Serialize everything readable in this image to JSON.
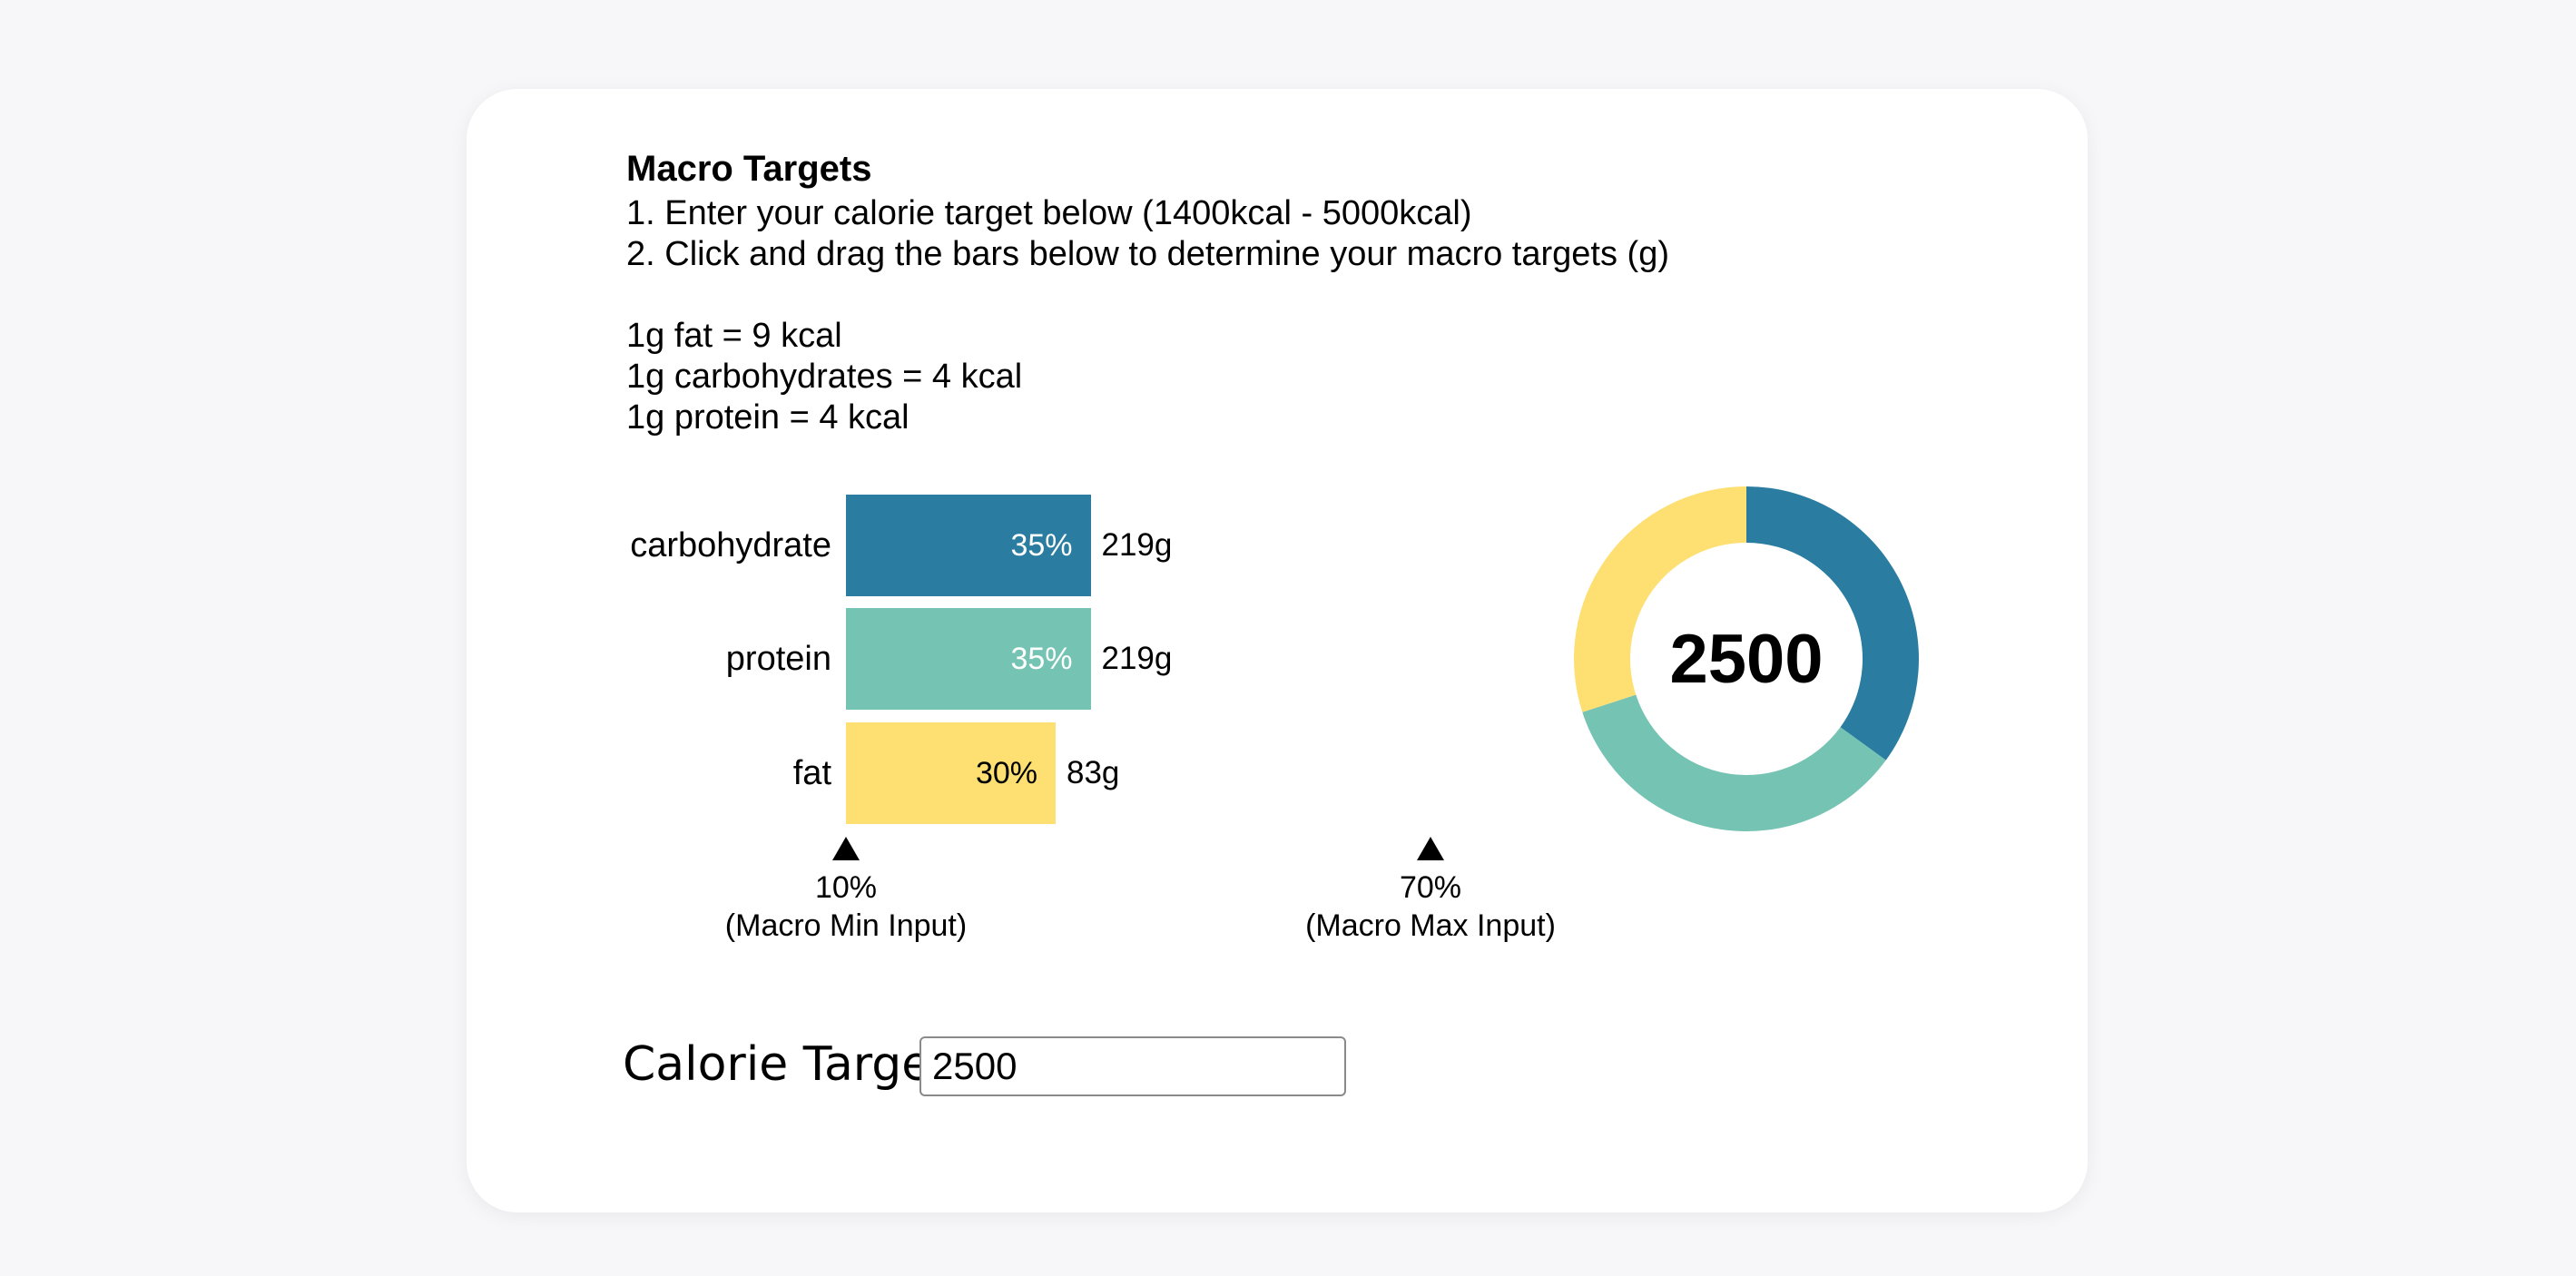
{
  "header": {
    "title": "Macro Targets",
    "step1": "1. Enter your calorie target below (1400kcal - 5000kcal)",
    "step2": "2. Click and drag the bars below to determine your macro targets (g)"
  },
  "conversions": {
    "fat": "1g fat = 9 kcal",
    "carbs": "1g carbohydrates = 4 kcal",
    "protein": "1g protein = 4 kcal"
  },
  "chart_data": {
    "type": "bar",
    "categories": [
      "carbohydrate",
      "protein",
      "fat"
    ],
    "values": [
      35,
      35,
      30
    ],
    "value_labels": [
      "35%",
      "35%",
      "30%"
    ],
    "grams": [
      "219g",
      "219g",
      "83g"
    ],
    "colors": [
      "#2a7ca0",
      "#75c3b3",
      "#fedf71"
    ],
    "label_colors": [
      "#ffffff",
      "#ffffff",
      "#000000"
    ],
    "xlim": [
      10,
      70
    ],
    "min_marker": {
      "value": "10%",
      "label": "(Macro Min Input)"
    },
    "max_marker": {
      "value": "70%",
      "label": "(Macro Max Input)"
    }
  },
  "donut": {
    "center_value": "2500",
    "segments": [
      {
        "name": "carbohydrate",
        "percent": 35,
        "color": "#2a7ca0"
      },
      {
        "name": "protein",
        "percent": 35,
        "color": "#75c3b3"
      },
      {
        "name": "fat",
        "percent": 30,
        "color": "#fedf71"
      }
    ]
  },
  "calorie": {
    "label": "Calorie Target",
    "value": "2500"
  }
}
